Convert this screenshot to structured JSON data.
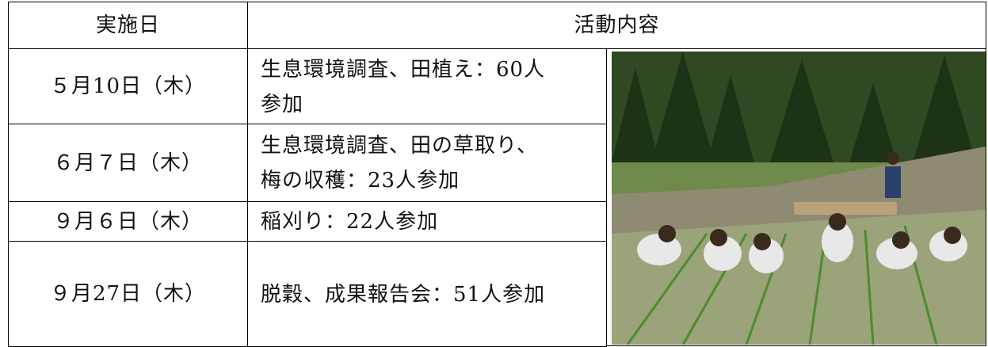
{
  "table": {
    "header": [
      "実施日",
      "活動内容"
    ],
    "rows": [
      {
        "date": "５月10日（木）",
        "lines": [
          "生息環境調査、田植え：60人",
          "参加"
        ]
      },
      {
        "date": "６月７日（木）",
        "lines": [
          "生息環境調査、田の草取り、",
          "梅の収穫：23人参加"
        ]
      },
      {
        "date": "９月６日（木）",
        "lines": [
          "稲刈り：22人参加"
        ]
      },
      {
        "date": "９月27日（木）",
        "lines": [
          "脱穀、成果報告会：51人参加"
        ]
      }
    ]
  }
}
